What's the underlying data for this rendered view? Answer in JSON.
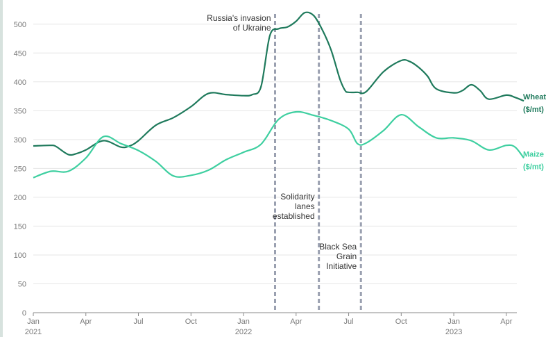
{
  "chart_data": {
    "type": "line",
    "title": "",
    "xlabel": "",
    "ylabel": "",
    "ylim": [
      0,
      525
    ],
    "yticks": [
      0,
      50,
      100,
      150,
      200,
      250,
      300,
      350,
      400,
      450,
      500
    ],
    "xlim": [
      0,
      27.6
    ],
    "x_ticks": [
      {
        "x": 0,
        "label": "Jan",
        "year": "2021"
      },
      {
        "x": 3,
        "label": "Apr",
        "year": ""
      },
      {
        "x": 6,
        "label": "Jul",
        "year": ""
      },
      {
        "x": 9,
        "label": "Oct",
        "year": ""
      },
      {
        "x": 12,
        "label": "Jan",
        "year": "2022"
      },
      {
        "x": 15,
        "label": "Apr",
        "year": ""
      },
      {
        "x": 18,
        "label": "Jul",
        "year": ""
      },
      {
        "x": 21,
        "label": "Oct",
        "year": ""
      },
      {
        "x": 24,
        "label": "Jan",
        "year": "2023"
      },
      {
        "x": 27,
        "label": "Apr",
        "year": ""
      }
    ],
    "series": [
      {
        "name": "Wheat",
        "label_lines": [
          "Wheat",
          "($/mt)"
        ],
        "color": "#1f7a5c",
        "points": [
          [
            0,
            289
          ],
          [
            1,
            290
          ],
          [
            1.3,
            288
          ],
          [
            2,
            274
          ],
          [
            2.5,
            276
          ],
          [
            3,
            282
          ],
          [
            4,
            298
          ],
          [
            5,
            287
          ],
          [
            5.5,
            289
          ],
          [
            6,
            298
          ],
          [
            7,
            325
          ],
          [
            8,
            338
          ],
          [
            9,
            357
          ],
          [
            10,
            380
          ],
          [
            11,
            378
          ],
          [
            12,
            376
          ],
          [
            12.5,
            378
          ],
          [
            13,
            392
          ],
          [
            13.5,
            480
          ],
          [
            14,
            492
          ],
          [
            14.5,
            495
          ],
          [
            15,
            505
          ],
          [
            15.5,
            520
          ],
          [
            16,
            515
          ],
          [
            16.5,
            490
          ],
          [
            17,
            455
          ],
          [
            17.5,
            405
          ],
          [
            17.8,
            385
          ],
          [
            18,
            382
          ],
          [
            18.5,
            382
          ],
          [
            19,
            383
          ],
          [
            20,
            418
          ],
          [
            21,
            437
          ],
          [
            21.5,
            435
          ],
          [
            22,
            425
          ],
          [
            22.5,
            410
          ],
          [
            23,
            388
          ],
          [
            24,
            381
          ],
          [
            24.5,
            385
          ],
          [
            25,
            395
          ],
          [
            25.5,
            385
          ],
          [
            26,
            370
          ],
          [
            27,
            377
          ],
          [
            27.5,
            373
          ],
          [
            28,
            367
          ]
        ]
      },
      {
        "name": "Maize",
        "label_lines": [
          "Maize",
          "($/mt)"
        ],
        "color": "#3ecfa0",
        "points": [
          [
            0,
            234
          ],
          [
            1,
            245
          ],
          [
            2,
            245
          ],
          [
            3,
            268
          ],
          [
            4,
            305
          ],
          [
            5,
            293
          ],
          [
            6,
            281
          ],
          [
            7,
            262
          ],
          [
            8,
            237
          ],
          [
            9,
            238
          ],
          [
            10,
            247
          ],
          [
            11,
            265
          ],
          [
            12,
            278
          ],
          [
            13,
            292
          ],
          [
            14,
            335
          ],
          [
            15,
            348
          ],
          [
            16,
            342
          ],
          [
            17,
            333
          ],
          [
            18,
            318
          ],
          [
            18.5,
            293
          ],
          [
            19,
            294
          ],
          [
            20,
            316
          ],
          [
            21,
            343
          ],
          [
            22,
            322
          ],
          [
            23,
            303
          ],
          [
            24,
            303
          ],
          [
            25,
            298
          ],
          [
            26,
            282
          ],
          [
            27,
            290
          ],
          [
            27.5,
            287
          ],
          [
            28,
            268
          ]
        ]
      }
    ],
    "annotations": [
      {
        "x": 13.8,
        "lines": [
          "Russia's invasion",
          "of Ukraine"
        ],
        "anchor": "end",
        "label_y": 30
      },
      {
        "x": 16.3,
        "lines": [
          "Solidarity",
          "lanes",
          "established"
        ],
        "anchor": "end",
        "label_y": 287
      },
      {
        "x": 18.7,
        "lines": [
          "Black Sea",
          "Grain",
          "Initiative"
        ],
        "anchor": "end",
        "label_y": 359
      }
    ],
    "grid": true,
    "legend": "inline-right"
  }
}
